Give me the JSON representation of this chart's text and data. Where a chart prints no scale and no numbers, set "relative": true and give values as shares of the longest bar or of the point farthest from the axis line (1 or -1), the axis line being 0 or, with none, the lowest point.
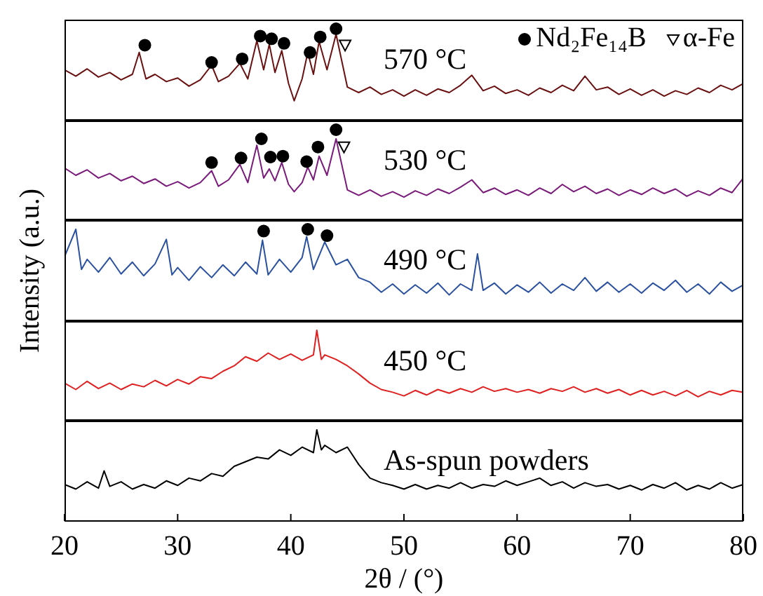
{
  "chart_data": [
    {
      "type": "line",
      "relative": true,
      "xlim": [
        20,
        80
      ],
      "xticks": [
        20,
        30,
        40,
        50,
        60,
        70,
        80
      ],
      "tick_labels": false,
      "legend": "top right",
      "annotations": [
        "570 °C"
      ],
      "series": [
        {
          "color": "#6b1010",
          "x": [
            20,
            21,
            22,
            23,
            24,
            25,
            26,
            26.6,
            27.2,
            28,
            29,
            30,
            31,
            32,
            33,
            33.6,
            34.5,
            35.5,
            36.2,
            37,
            37.6,
            38.1,
            38.6,
            39.2,
            39.8,
            40.3,
            41,
            41.5,
            42,
            42.5,
            43.2,
            44,
            45,
            46,
            47,
            48,
            49,
            50,
            51,
            52,
            53,
            54,
            55,
            56,
            57,
            58,
            59,
            60,
            61,
            62,
            63,
            64,
            65,
            66,
            67,
            68,
            69,
            70,
            71,
            72,
            73,
            74,
            75,
            76,
            77,
            78,
            79,
            80
          ],
          "values": [
            0.55,
            0.48,
            0.56,
            0.47,
            0.52,
            0.44,
            0.5,
            0.74,
            0.45,
            0.5,
            0.42,
            0.46,
            0.37,
            0.44,
            0.6,
            0.42,
            0.48,
            0.62,
            0.45,
            0.87,
            0.55,
            0.83,
            0.52,
            0.76,
            0.4,
            0.21,
            0.45,
            0.74,
            0.5,
            0.86,
            0.55,
            0.94,
            0.36,
            0.3,
            0.36,
            0.28,
            0.33,
            0.26,
            0.33,
            0.27,
            0.34,
            0.3,
            0.38,
            0.49,
            0.32,
            0.37,
            0.29,
            0.33,
            0.27,
            0.35,
            0.3,
            0.38,
            0.32,
            0.48,
            0.33,
            0.36,
            0.28,
            0.34,
            0.27,
            0.33,
            0.26,
            0.32,
            0.28,
            0.35,
            0.3,
            0.38,
            0.33,
            0.4
          ]
        },
        {
          "type": "scatter",
          "name": "Nd₂Fe₁₄B",
          "color": "#000000",
          "marker": "circle",
          "x": [
            27.1,
            33.0,
            35.7,
            37.3,
            38.3,
            39.4,
            41.7,
            42.6,
            44.0
          ],
          "values": [
            0.82,
            0.63,
            0.67,
            0.92,
            0.89,
            0.84,
            0.74,
            0.91,
            1.0
          ]
        },
        {
          "type": "scatter",
          "name": "α-Fe",
          "color": "#000000",
          "marker": "triangle",
          "x": [
            44.8
          ],
          "values": [
            0.82
          ]
        }
      ]
    },
    {
      "type": "line",
      "relative": true,
      "xlim": [
        20,
        80
      ],
      "xticks": [
        20,
        30,
        40,
        50,
        60,
        70,
        80
      ],
      "tick_labels": false,
      "annotations": [
        "530 °C"
      ],
      "series": [
        {
          "color": "#7a1a7a",
          "x": [
            20,
            21,
            22,
            23,
            24,
            25,
            26,
            27,
            28,
            29,
            30,
            31,
            32,
            33,
            33.6,
            34.5,
            35.5,
            36.2,
            37,
            37.6,
            38.1,
            38.6,
            39.2,
            39.8,
            40.3,
            41,
            41.5,
            42,
            42.5,
            43.2,
            44,
            45,
            46,
            47,
            48,
            49,
            50,
            51,
            52,
            53,
            54,
            55,
            56,
            57,
            58,
            59,
            60,
            61,
            62,
            63,
            64,
            65,
            66,
            67,
            68,
            69,
            70,
            71,
            72,
            73,
            74,
            75,
            76,
            77,
            78,
            79,
            80
          ],
          "values": [
            0.58,
            0.5,
            0.56,
            0.47,
            0.52,
            0.44,
            0.49,
            0.41,
            0.46,
            0.38,
            0.43,
            0.36,
            0.42,
            0.55,
            0.38,
            0.45,
            0.62,
            0.42,
            0.83,
            0.47,
            0.57,
            0.44,
            0.64,
            0.4,
            0.32,
            0.42,
            0.59,
            0.45,
            0.71,
            0.5,
            0.9,
            0.34,
            0.28,
            0.34,
            0.27,
            0.32,
            0.26,
            0.33,
            0.28,
            0.35,
            0.3,
            0.37,
            0.45,
            0.31,
            0.36,
            0.29,
            0.34,
            0.28,
            0.36,
            0.3,
            0.4,
            0.32,
            0.38,
            0.3,
            0.35,
            0.28,
            0.34,
            0.29,
            0.36,
            0.3,
            0.35,
            0.27,
            0.33,
            0.28,
            0.36,
            0.31,
            0.47
          ]
        },
        {
          "type": "scatter",
          "color": "#000000",
          "marker": "circle",
          "x": [
            33.0,
            35.6,
            37.4,
            38.2,
            39.3,
            41.4,
            42.4,
            44.0
          ],
          "values": [
            0.64,
            0.69,
            0.9,
            0.7,
            0.71,
            0.65,
            0.81,
            1.0
          ]
        },
        {
          "type": "scatter",
          "color": "#000000",
          "marker": "triangle",
          "x": [
            44.7
          ],
          "values": [
            0.81
          ]
        }
      ]
    },
    {
      "type": "line",
      "relative": true,
      "xlim": [
        20,
        80
      ],
      "xticks": [
        20,
        30,
        40,
        50,
        60,
        70,
        80
      ],
      "tick_labels": false,
      "ylabel": "Intensity (a.u.)",
      "annotations": [
        "490 °C"
      ],
      "series": [
        {
          "color": "#2a50a0",
          "x": [
            20,
            21,
            21.5,
            22,
            23,
            24,
            25,
            26,
            27,
            28,
            29,
            29.5,
            30,
            31,
            32,
            33,
            34,
            35,
            36,
            37,
            37.5,
            38,
            39,
            40,
            41,
            41.4,
            42,
            43,
            44,
            45,
            46,
            47,
            48,
            49,
            50,
            51,
            52,
            53,
            54,
            55,
            56,
            56.5,
            57,
            58,
            59,
            60,
            61,
            62,
            63,
            64,
            65,
            66,
            67,
            68,
            69,
            70,
            71,
            72,
            73,
            74,
            75,
            76,
            77,
            78,
            79,
            80
          ],
          "values": [
            0.7,
            1.0,
            0.56,
            0.67,
            0.53,
            0.69,
            0.51,
            0.64,
            0.49,
            0.62,
            0.89,
            0.5,
            0.58,
            0.44,
            0.59,
            0.47,
            0.61,
            0.49,
            0.64,
            0.51,
            0.88,
            0.5,
            0.67,
            0.53,
            0.69,
            0.92,
            0.56,
            0.86,
            0.61,
            0.67,
            0.47,
            0.42,
            0.31,
            0.4,
            0.29,
            0.39,
            0.3,
            0.41,
            0.28,
            0.4,
            0.33,
            0.73,
            0.33,
            0.41,
            0.29,
            0.39,
            0.31,
            0.42,
            0.3,
            0.4,
            0.33,
            0.47,
            0.32,
            0.42,
            0.31,
            0.4,
            0.3,
            0.41,
            0.33,
            0.44,
            0.31,
            0.4,
            0.29,
            0.42,
            0.32,
            0.39
          ]
        },
        {
          "type": "scatter",
          "color": "#000000",
          "marker": "circle",
          "x": [
            37.6,
            41.5,
            43.2
          ],
          "values": [
            0.98,
            1.0,
            0.93
          ]
        }
      ]
    },
    {
      "type": "line",
      "relative": true,
      "xlim": [
        20,
        80
      ],
      "xticks": [
        20,
        30,
        40,
        50,
        60,
        70,
        80
      ],
      "tick_labels": false,
      "annotations": [
        "450 °C"
      ],
      "series": [
        {
          "color": "#e02020",
          "x": [
            20,
            21,
            22,
            23,
            24,
            25,
            26,
            27,
            28,
            29,
            30,
            31,
            32,
            33,
            34,
            35,
            36,
            37,
            38,
            39,
            40,
            41,
            42,
            42.3,
            42.7,
            43,
            44,
            45,
            46,
            47,
            48,
            49,
            50,
            51,
            52,
            53,
            54,
            55,
            56,
            57,
            58,
            59,
            60,
            61,
            62,
            63,
            64,
            65,
            66,
            67,
            68,
            69,
            70,
            71,
            72,
            73,
            74,
            75,
            76,
            77,
            78,
            79,
            80
          ],
          "values": [
            0.42,
            0.35,
            0.44,
            0.36,
            0.42,
            0.35,
            0.41,
            0.38,
            0.45,
            0.39,
            0.46,
            0.41,
            0.49,
            0.47,
            0.55,
            0.61,
            0.71,
            0.66,
            0.75,
            0.68,
            0.74,
            0.67,
            0.73,
            1.0,
            0.68,
            0.73,
            0.68,
            0.61,
            0.52,
            0.42,
            0.35,
            0.32,
            0.28,
            0.34,
            0.29,
            0.35,
            0.31,
            0.36,
            0.32,
            0.38,
            0.33,
            0.36,
            0.32,
            0.35,
            0.31,
            0.36,
            0.33,
            0.38,
            0.32,
            0.36,
            0.31,
            0.35,
            0.29,
            0.34,
            0.29,
            0.33,
            0.28,
            0.34,
            0.27,
            0.33,
            0.29,
            0.34,
            0.32
          ]
        }
      ]
    },
    {
      "type": "line",
      "relative": true,
      "xlim": [
        20,
        80
      ],
      "xticks": [
        20,
        30,
        40,
        50,
        60,
        70,
        80
      ],
      "tick_labels": "x",
      "xlabel": "2θ / (°)",
      "annotations": [
        "As-spun powders"
      ],
      "series": [
        {
          "color": "#000000",
          "x": [
            20,
            21,
            22,
            23,
            23.5,
            24,
            25,
            26,
            27,
            28,
            29,
            30,
            31,
            32,
            33,
            34,
            35,
            36,
            37,
            38,
            39,
            40,
            41,
            42,
            42.3,
            42.7,
            43,
            44,
            45,
            46,
            47,
            48,
            49,
            50,
            51,
            52,
            53,
            54,
            55,
            56,
            57,
            58,
            59,
            60,
            61,
            62,
            63,
            64,
            65,
            66,
            67,
            68,
            69,
            70,
            71,
            72,
            73,
            74,
            75,
            76,
            77,
            78,
            79,
            80
          ],
          "values": [
            0.4,
            0.35,
            0.43,
            0.36,
            0.55,
            0.38,
            0.43,
            0.35,
            0.4,
            0.36,
            0.44,
            0.39,
            0.47,
            0.44,
            0.52,
            0.49,
            0.6,
            0.65,
            0.7,
            0.68,
            0.78,
            0.72,
            0.81,
            0.75,
            1.0,
            0.78,
            0.83,
            0.75,
            0.81,
            0.62,
            0.47,
            0.42,
            0.39,
            0.35,
            0.4,
            0.35,
            0.39,
            0.36,
            0.42,
            0.36,
            0.4,
            0.38,
            0.44,
            0.39,
            0.43,
            0.47,
            0.39,
            0.43,
            0.36,
            0.42,
            0.38,
            0.4,
            0.35,
            0.39,
            0.34,
            0.4,
            0.36,
            0.42,
            0.34,
            0.39,
            0.35,
            0.42,
            0.36,
            0.4
          ]
        }
      ]
    }
  ]
}
